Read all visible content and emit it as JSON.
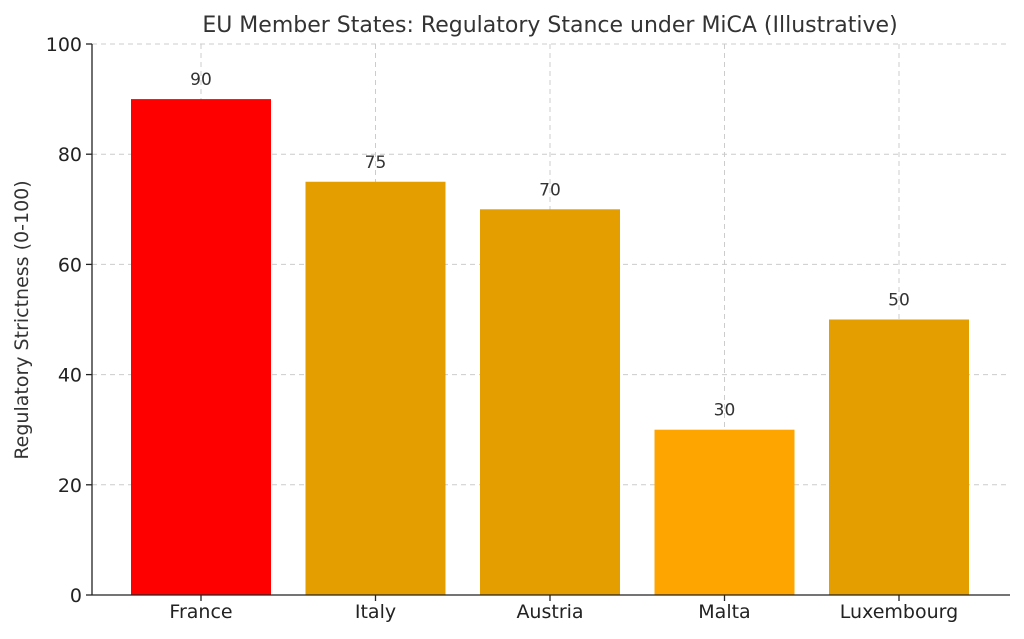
{
  "chart_data": {
    "type": "bar",
    "title": "EU Member States: Regulatory Stance under MiCA (Illustrative)",
    "xlabel": "",
    "ylabel": "Regulatory Strictness (0-100)",
    "ylim": [
      0,
      100
    ],
    "yticks": [
      0,
      20,
      40,
      60,
      80,
      100
    ],
    "grid": true,
    "categories": [
      "France",
      "Italy",
      "Austria",
      "Malta",
      "Luxembourg"
    ],
    "values": [
      90,
      75,
      70,
      30,
      50
    ],
    "colors": [
      "#ff0000",
      "#e49e00",
      "#e49e00",
      "#ffa500",
      "#e49e00"
    ]
  }
}
